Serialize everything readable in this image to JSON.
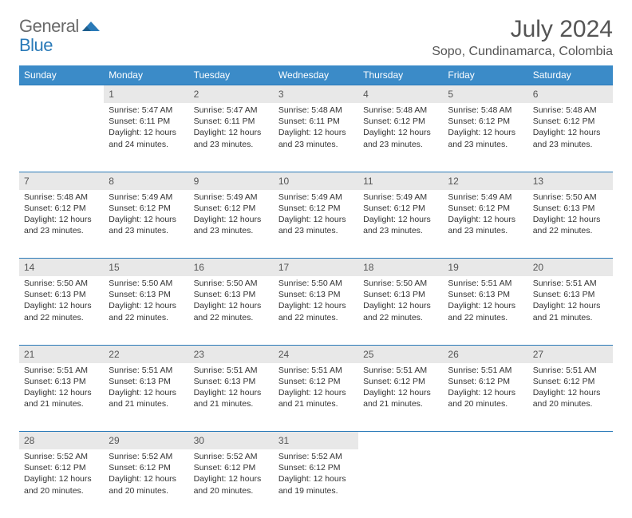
{
  "logo": {
    "general": "General",
    "blue": "Blue",
    "arrow_color": "#2a7ab8"
  },
  "title": "July 2024",
  "location": "Sopo, Cundinamarca, Colombia",
  "header_bg": "#3b8bc8",
  "daynum_bg": "#e8e8e8",
  "divider_color": "#2a7ab8",
  "days_of_week": [
    "Sunday",
    "Monday",
    "Tuesday",
    "Wednesday",
    "Thursday",
    "Friday",
    "Saturday"
  ],
  "weeks": [
    [
      null,
      {
        "n": "1",
        "sr": "Sunrise: 5:47 AM",
        "ss": "Sunset: 6:11 PM",
        "dl1": "Daylight: 12 hours",
        "dl2": "and 24 minutes."
      },
      {
        "n": "2",
        "sr": "Sunrise: 5:47 AM",
        "ss": "Sunset: 6:11 PM",
        "dl1": "Daylight: 12 hours",
        "dl2": "and 23 minutes."
      },
      {
        "n": "3",
        "sr": "Sunrise: 5:48 AM",
        "ss": "Sunset: 6:11 PM",
        "dl1": "Daylight: 12 hours",
        "dl2": "and 23 minutes."
      },
      {
        "n": "4",
        "sr": "Sunrise: 5:48 AM",
        "ss": "Sunset: 6:12 PM",
        "dl1": "Daylight: 12 hours",
        "dl2": "and 23 minutes."
      },
      {
        "n": "5",
        "sr": "Sunrise: 5:48 AM",
        "ss": "Sunset: 6:12 PM",
        "dl1": "Daylight: 12 hours",
        "dl2": "and 23 minutes."
      },
      {
        "n": "6",
        "sr": "Sunrise: 5:48 AM",
        "ss": "Sunset: 6:12 PM",
        "dl1": "Daylight: 12 hours",
        "dl2": "and 23 minutes."
      }
    ],
    [
      {
        "n": "7",
        "sr": "Sunrise: 5:48 AM",
        "ss": "Sunset: 6:12 PM",
        "dl1": "Daylight: 12 hours",
        "dl2": "and 23 minutes."
      },
      {
        "n": "8",
        "sr": "Sunrise: 5:49 AM",
        "ss": "Sunset: 6:12 PM",
        "dl1": "Daylight: 12 hours",
        "dl2": "and 23 minutes."
      },
      {
        "n": "9",
        "sr": "Sunrise: 5:49 AM",
        "ss": "Sunset: 6:12 PM",
        "dl1": "Daylight: 12 hours",
        "dl2": "and 23 minutes."
      },
      {
        "n": "10",
        "sr": "Sunrise: 5:49 AM",
        "ss": "Sunset: 6:12 PM",
        "dl1": "Daylight: 12 hours",
        "dl2": "and 23 minutes."
      },
      {
        "n": "11",
        "sr": "Sunrise: 5:49 AM",
        "ss": "Sunset: 6:12 PM",
        "dl1": "Daylight: 12 hours",
        "dl2": "and 23 minutes."
      },
      {
        "n": "12",
        "sr": "Sunrise: 5:49 AM",
        "ss": "Sunset: 6:12 PM",
        "dl1": "Daylight: 12 hours",
        "dl2": "and 23 minutes."
      },
      {
        "n": "13",
        "sr": "Sunrise: 5:50 AM",
        "ss": "Sunset: 6:13 PM",
        "dl1": "Daylight: 12 hours",
        "dl2": "and 22 minutes."
      }
    ],
    [
      {
        "n": "14",
        "sr": "Sunrise: 5:50 AM",
        "ss": "Sunset: 6:13 PM",
        "dl1": "Daylight: 12 hours",
        "dl2": "and 22 minutes."
      },
      {
        "n": "15",
        "sr": "Sunrise: 5:50 AM",
        "ss": "Sunset: 6:13 PM",
        "dl1": "Daylight: 12 hours",
        "dl2": "and 22 minutes."
      },
      {
        "n": "16",
        "sr": "Sunrise: 5:50 AM",
        "ss": "Sunset: 6:13 PM",
        "dl1": "Daylight: 12 hours",
        "dl2": "and 22 minutes."
      },
      {
        "n": "17",
        "sr": "Sunrise: 5:50 AM",
        "ss": "Sunset: 6:13 PM",
        "dl1": "Daylight: 12 hours",
        "dl2": "and 22 minutes."
      },
      {
        "n": "18",
        "sr": "Sunrise: 5:50 AM",
        "ss": "Sunset: 6:13 PM",
        "dl1": "Daylight: 12 hours",
        "dl2": "and 22 minutes."
      },
      {
        "n": "19",
        "sr": "Sunrise: 5:51 AM",
        "ss": "Sunset: 6:13 PM",
        "dl1": "Daylight: 12 hours",
        "dl2": "and 22 minutes."
      },
      {
        "n": "20",
        "sr": "Sunrise: 5:51 AM",
        "ss": "Sunset: 6:13 PM",
        "dl1": "Daylight: 12 hours",
        "dl2": "and 21 minutes."
      }
    ],
    [
      {
        "n": "21",
        "sr": "Sunrise: 5:51 AM",
        "ss": "Sunset: 6:13 PM",
        "dl1": "Daylight: 12 hours",
        "dl2": "and 21 minutes."
      },
      {
        "n": "22",
        "sr": "Sunrise: 5:51 AM",
        "ss": "Sunset: 6:13 PM",
        "dl1": "Daylight: 12 hours",
        "dl2": "and 21 minutes."
      },
      {
        "n": "23",
        "sr": "Sunrise: 5:51 AM",
        "ss": "Sunset: 6:13 PM",
        "dl1": "Daylight: 12 hours",
        "dl2": "and 21 minutes."
      },
      {
        "n": "24",
        "sr": "Sunrise: 5:51 AM",
        "ss": "Sunset: 6:12 PM",
        "dl1": "Daylight: 12 hours",
        "dl2": "and 21 minutes."
      },
      {
        "n": "25",
        "sr": "Sunrise: 5:51 AM",
        "ss": "Sunset: 6:12 PM",
        "dl1": "Daylight: 12 hours",
        "dl2": "and 21 minutes."
      },
      {
        "n": "26",
        "sr": "Sunrise: 5:51 AM",
        "ss": "Sunset: 6:12 PM",
        "dl1": "Daylight: 12 hours",
        "dl2": "and 20 minutes."
      },
      {
        "n": "27",
        "sr": "Sunrise: 5:51 AM",
        "ss": "Sunset: 6:12 PM",
        "dl1": "Daylight: 12 hours",
        "dl2": "and 20 minutes."
      }
    ],
    [
      {
        "n": "28",
        "sr": "Sunrise: 5:52 AM",
        "ss": "Sunset: 6:12 PM",
        "dl1": "Daylight: 12 hours",
        "dl2": "and 20 minutes."
      },
      {
        "n": "29",
        "sr": "Sunrise: 5:52 AM",
        "ss": "Sunset: 6:12 PM",
        "dl1": "Daylight: 12 hours",
        "dl2": "and 20 minutes."
      },
      {
        "n": "30",
        "sr": "Sunrise: 5:52 AM",
        "ss": "Sunset: 6:12 PM",
        "dl1": "Daylight: 12 hours",
        "dl2": "and 20 minutes."
      },
      {
        "n": "31",
        "sr": "Sunrise: 5:52 AM",
        "ss": "Sunset: 6:12 PM",
        "dl1": "Daylight: 12 hours",
        "dl2": "and 19 minutes."
      },
      null,
      null,
      null
    ]
  ]
}
